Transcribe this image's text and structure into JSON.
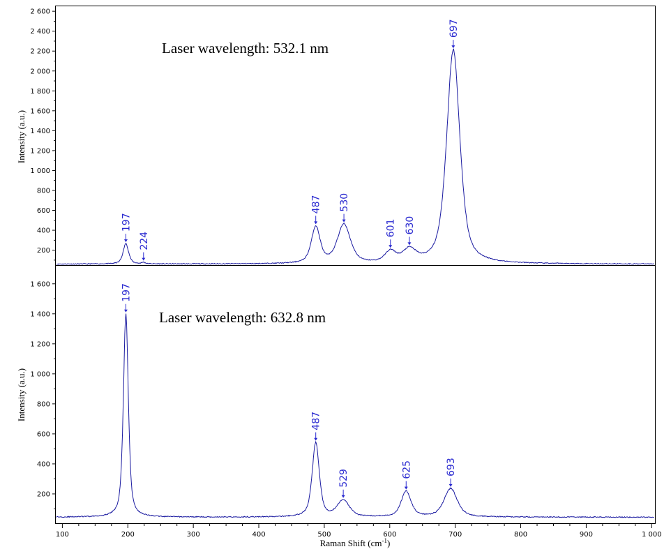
{
  "chart_data": [
    {
      "type": "line",
      "annotation": "Laser wavelength: 532.1 nm",
      "ylabel": "Intensity (a.u.)",
      "xlabel": "",
      "xlim": [
        90,
        1005
      ],
      "ylim": [
        50,
        2650
      ],
      "y_ticks": [
        200,
        400,
        600,
        800,
        1000,
        1200,
        1400,
        1600,
        1800,
        2000,
        2200,
        2400,
        2600
      ],
      "y_tick_labels": [
        "200",
        "400",
        "600",
        "800",
        "1 000",
        "1 200",
        "1 400",
        "1 600",
        "1 800",
        "2 000",
        "2 200",
        "2 400",
        "2 600"
      ],
      "grid": false,
      "line_color": "#1a1aa0",
      "label_color": "#2a2ad0",
      "baseline": 60,
      "peaks": [
        {
          "x": 197,
          "y": 265,
          "label": "197"
        },
        {
          "x": 224,
          "y": 75,
          "label": "224"
        },
        {
          "x": 487,
          "y": 425,
          "label": "487"
        },
        {
          "x": 530,
          "y": 450,
          "label": "530"
        },
        {
          "x": 601,
          "y": 170,
          "label": "601"
        },
        {
          "x": 630,
          "y": 185,
          "label": "630"
        },
        {
          "x": 697,
          "y": 2210,
          "label": "697"
        }
      ]
    },
    {
      "type": "line",
      "annotation": "Laser wavelength: 632.8 nm",
      "ylabel": "Intensity (a.u.)",
      "xlabel": "Raman Shift (cm-1)",
      "xlim": [
        90,
        1005
      ],
      "ylim": [
        0,
        1720
      ],
      "x_ticks": [
        100,
        200,
        300,
        400,
        500,
        600,
        700,
        800,
        900,
        1000
      ],
      "x_tick_labels": [
        "100",
        "200",
        "300",
        "400",
        "500",
        "600",
        "700",
        "800",
        "900",
        "1 000"
      ],
      "y_ticks": [
        200,
        400,
        600,
        800,
        1000,
        1200,
        1400,
        1600
      ],
      "y_tick_labels": [
        "200",
        "400",
        "600",
        "800",
        "1 000",
        "1 200",
        "1 400",
        "1 600"
      ],
      "grid": false,
      "line_color": "#1a1aa0",
      "label_color": "#2a2ad0",
      "baseline": 45,
      "peaks": [
        {
          "x": 197,
          "y": 1400,
          "label": "197"
        },
        {
          "x": 487,
          "y": 540,
          "label": "487"
        },
        {
          "x": 529,
          "y": 155,
          "label": "529"
        },
        {
          "x": 625,
          "y": 215,
          "label": "625"
        },
        {
          "x": 693,
          "y": 235,
          "label": "693"
        }
      ]
    }
  ]
}
